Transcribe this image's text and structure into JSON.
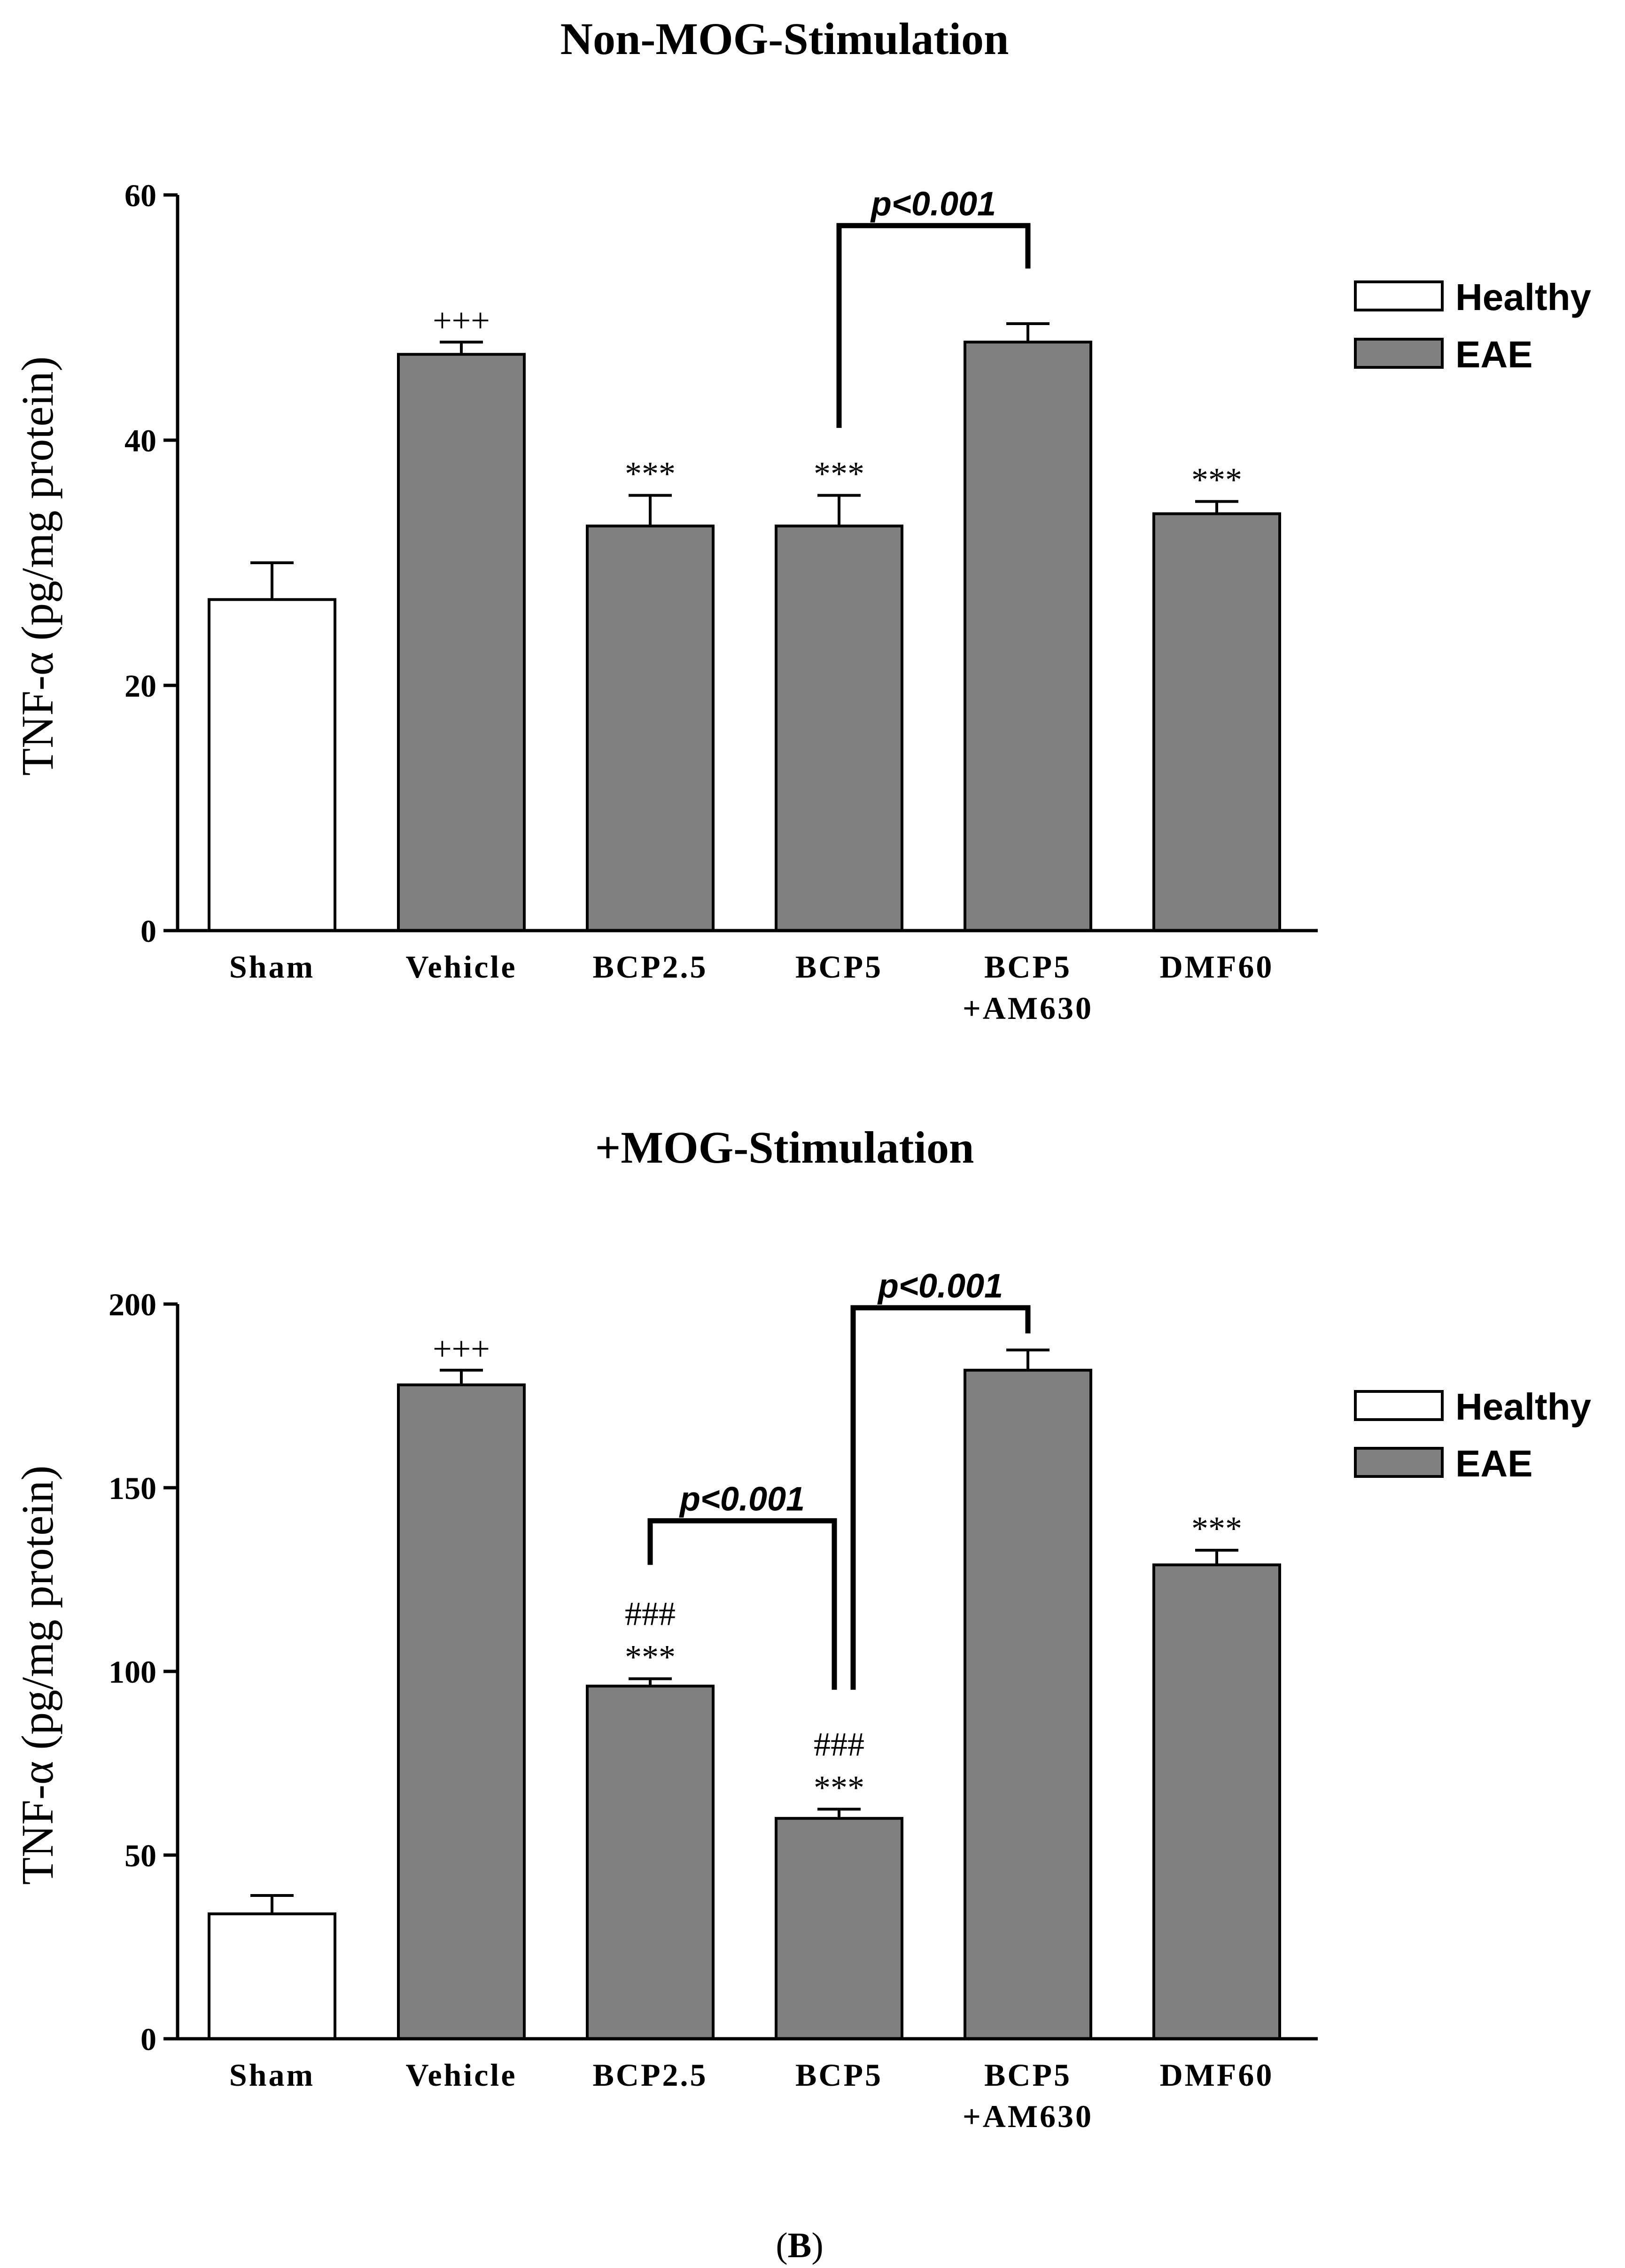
{
  "colors": {
    "healthy": "#ffffff",
    "eae": "#808080",
    "stroke": "#000000"
  },
  "legend": [
    {
      "label": "Healthy",
      "color_key": "healthy"
    },
    {
      "label": "EAE",
      "color_key": "eae"
    }
  ],
  "caption": {
    "pre": "(",
    "letter": "B",
    "post": ")"
  },
  "chart_data": [
    {
      "type": "bar",
      "title": "Non-MOG-Stimulation",
      "ylabel": "TNF-α (pg/mg protein)",
      "xlabel": "",
      "ylim": [
        0,
        60
      ],
      "yticks": [
        0,
        20,
        40,
        60
      ],
      "categories": [
        [
          "Sham"
        ],
        [
          "Vehicle"
        ],
        [
          "BCP2.5"
        ],
        [
          "BCP5"
        ],
        [
          "BCP5",
          "+AM630"
        ],
        [
          "DMF60"
        ]
      ],
      "group": [
        "Healthy",
        "EAE",
        "EAE",
        "EAE",
        "EAE",
        "EAE"
      ],
      "values": [
        27,
        47,
        33,
        33,
        48,
        34
      ],
      "errors": [
        3,
        1,
        2.5,
        2.5,
        1.5,
        1
      ],
      "annotations": [
        {
          "bar": 1,
          "lines": [
            "+++"
          ]
        },
        {
          "bar": 2,
          "lines": [
            "***"
          ]
        },
        {
          "bar": 3,
          "lines": [
            "***"
          ]
        },
        {
          "bar": 5,
          "lines": [
            "***"
          ]
        }
      ],
      "brackets": [
        {
          "from": 3,
          "to": 4,
          "level": 57.5,
          "from_end": 41,
          "to_end": 54,
          "label": "p<0.001"
        }
      ]
    },
    {
      "type": "bar",
      "title": "+MOG-Stimulation",
      "ylabel": "TNF-α (pg/mg protein)",
      "xlabel": "",
      "ylim": [
        0,
        200
      ],
      "yticks": [
        0,
        50,
        100,
        150,
        200
      ],
      "categories": [
        [
          "Sham"
        ],
        [
          "Vehicle"
        ],
        [
          "BCP2.5"
        ],
        [
          "BCP5"
        ],
        [
          "BCP5",
          "+AM630"
        ],
        [
          "DMF60"
        ]
      ],
      "group": [
        "Healthy",
        "EAE",
        "EAE",
        "EAE",
        "EAE",
        "EAE"
      ],
      "values": [
        34,
        178,
        96,
        60,
        182,
        129
      ],
      "errors": [
        5,
        4,
        2,
        2.5,
        5.5,
        4
      ],
      "annotations": [
        {
          "bar": 1,
          "lines": [
            "+++"
          ]
        },
        {
          "bar": 2,
          "lines": [
            "###",
            "***"
          ]
        },
        {
          "bar": 3,
          "lines": [
            "###",
            "***"
          ]
        },
        {
          "bar": 5,
          "lines": [
            "***"
          ]
        }
      ],
      "brackets": [
        {
          "from": 2,
          "to": 3,
          "level": 141,
          "from_end": 129,
          "to_end": 95,
          "label": "p<0.001"
        },
        {
          "from": 3,
          "to": 4,
          "level": 199,
          "from_end": 95,
          "to_end": 192,
          "label": "p<0.001"
        }
      ]
    }
  ]
}
